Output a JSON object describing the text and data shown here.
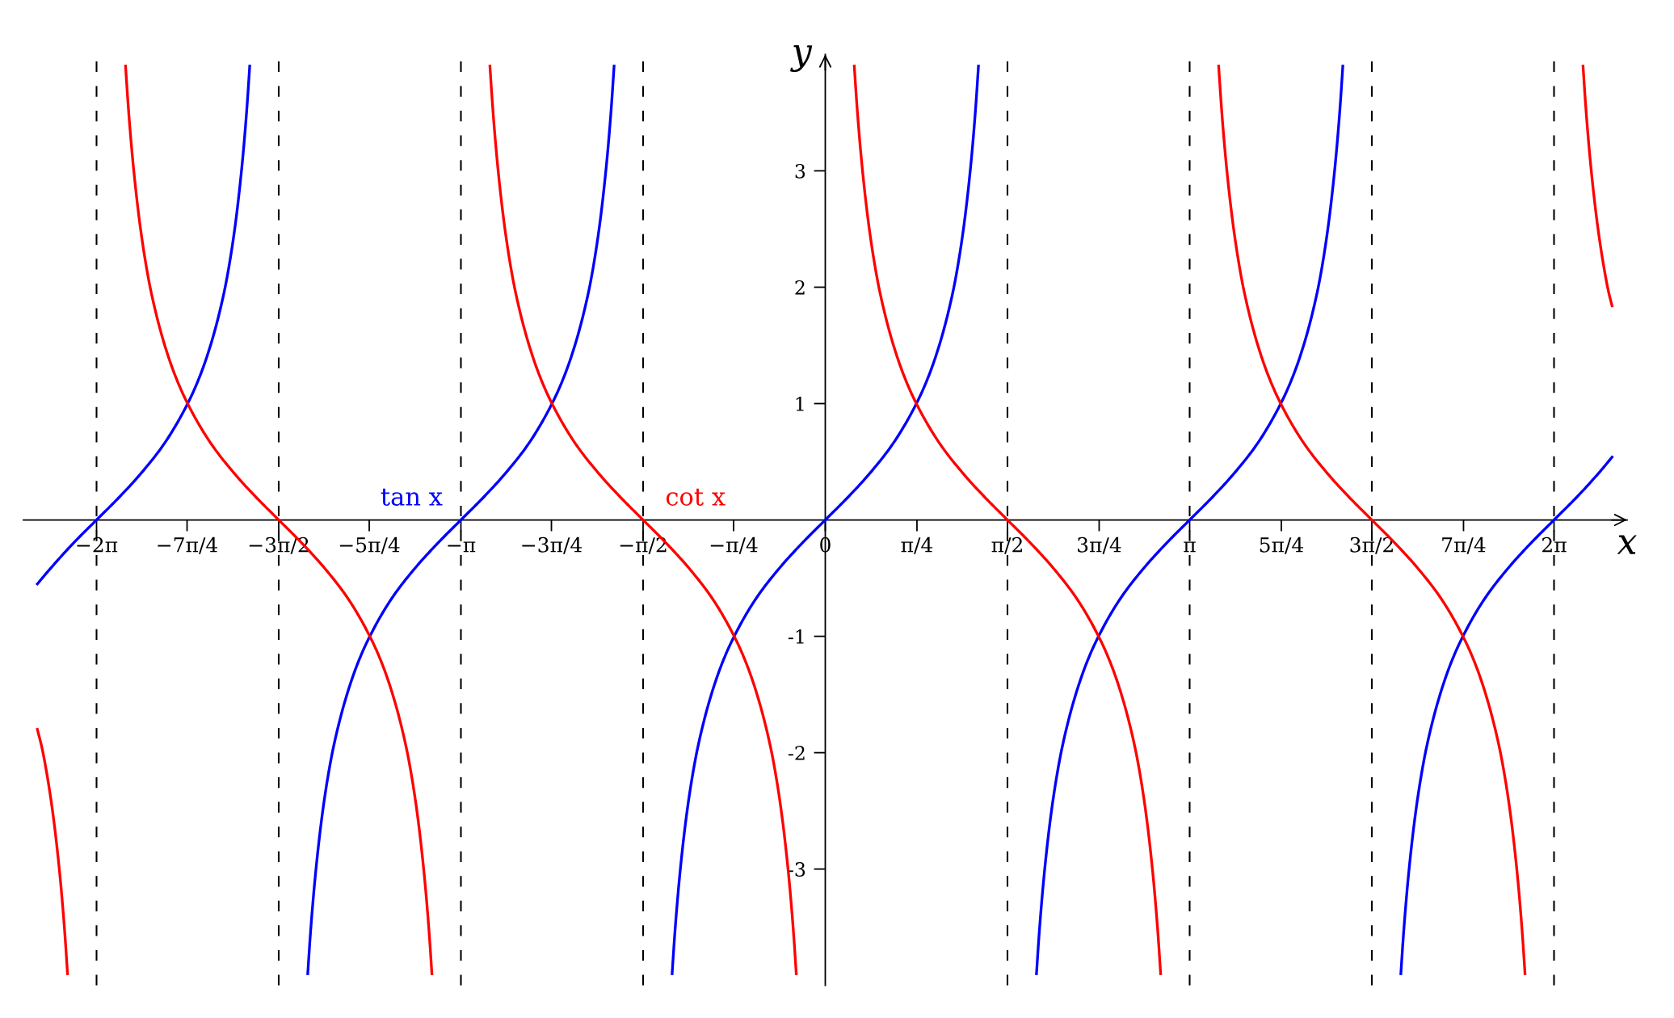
{
  "chart_data": {
    "type": "line",
    "xlabel": "x",
    "ylabel": "y",
    "xlim": [
      -6.91,
      6.91
    ],
    "ylim": [
      -4,
      4
    ],
    "xticks": [
      {
        "value": -6.28,
        "label": "−2π"
      },
      {
        "value": -5.5,
        "label": "−7π/4"
      },
      {
        "value": -4.71,
        "label": "−3π/2"
      },
      {
        "value": -3.93,
        "label": "−5π/4"
      },
      {
        "value": -3.14,
        "label": "−π"
      },
      {
        "value": -2.36,
        "label": "−3π/4"
      },
      {
        "value": -1.57,
        "label": "−π/2"
      },
      {
        "value": -0.79,
        "label": "−π/4"
      },
      0,
      {
        "value": 0.79,
        "label": "π/4"
      },
      {
        "value": 1.57,
        "label": "π/2"
      },
      {
        "value": 2.36,
        "label": "3π/4"
      },
      {
        "value": 3.14,
        "label": "π"
      },
      {
        "value": 3.93,
        "label": "5π/4"
      },
      {
        "value": 4.71,
        "label": "3π/2"
      },
      {
        "value": 5.5,
        "label": "7π/4"
      },
      {
        "value": 6.28,
        "label": "2π"
      }
    ],
    "yticks": [
      -3,
      -2,
      -1,
      1,
      2,
      3
    ],
    "line_style": "solid",
    "series": [
      {
        "name": "tan x",
        "color": "#0000ff",
        "x": [
          -6.79,
          -6.68,
          -6.48,
          -6.28,
          -6.08,
          -5.88,
          -5.68,
          -5.48,
          -5.38,
          -5.28,
          -5.18,
          -5.13,
          -5.08,
          -5.03,
          -5.0,
          -4.98,
          -4.96,
          -4.71,
          -4.46,
          -4.44,
          -4.42,
          -4.39,
          -4.34,
          -4.29,
          -4.24,
          -4.14,
          -4.04,
          -3.94,
          -3.74,
          -3.54,
          -3.34,
          -3.14,
          -2.94,
          -2.74,
          -2.54,
          -2.34,
          -2.24,
          -2.14,
          -2.04,
          -1.99,
          -1.94,
          -1.89,
          -1.86,
          -1.84,
          -1.82,
          -1.57,
          -1.32,
          -1.3,
          -1.28,
          -1.25,
          -1.2,
          -1.15,
          -1.1,
          -1.0,
          -0.9,
          -0.8,
          -0.6,
          -0.4,
          -0.2,
          0,
          0.2,
          0.4,
          0.6,
          0.8,
          0.9,
          1.0,
          1.1,
          1.15,
          1.2,
          1.25,
          1.28,
          1.3,
          1.32,
          1.57,
          1.82,
          1.84,
          1.86,
          1.89,
          1.94,
          1.99,
          2.04,
          2.14,
          2.24,
          2.34,
          2.54,
          2.74,
          2.94,
          3.14,
          3.34,
          3.54,
          3.74,
          3.94,
          4.04,
          4.14,
          4.24,
          4.29,
          4.34,
          4.39,
          4.42,
          4.44,
          4.46,
          4.71,
          4.96,
          4.98,
          5.0,
          5.03,
          5.08,
          5.13,
          5.18,
          5.28,
          5.38,
          5.48,
          5.68,
          5.88,
          6.08,
          6.28,
          6.48,
          6.68,
          6.78
        ],
        "values": [
          -0.55,
          -0.42,
          -0.2,
          0,
          0.2,
          0.42,
          0.68,
          1.03,
          1.26,
          1.56,
          1.96,
          2.23,
          2.57,
          3.01,
          3.34,
          3.6,
          3.9,
          null,
          -3.9,
          -3.6,
          -3.34,
          -3.01,
          -2.57,
          -2.23,
          -1.96,
          -1.56,
          -1.26,
          -1.03,
          -0.68,
          -0.42,
          -0.2,
          0,
          0.2,
          0.42,
          0.68,
          1.03,
          1.26,
          1.56,
          1.96,
          2.23,
          2.57,
          3.01,
          3.34,
          3.6,
          3.9,
          null,
          -3.9,
          -3.6,
          -3.34,
          -3.01,
          -2.57,
          -2.23,
          -1.96,
          -1.56,
          -1.26,
          -1.03,
          -0.68,
          -0.42,
          -0.2,
          0,
          0.2,
          0.42,
          0.68,
          1.03,
          1.26,
          1.56,
          1.96,
          2.23,
          2.57,
          3.01,
          3.34,
          3.6,
          3.9,
          null,
          -3.9,
          -3.6,
          -3.34,
          -3.01,
          -2.57,
          -2.23,
          -1.96,
          -1.56,
          -1.26,
          -1.03,
          -0.68,
          -0.42,
          -0.2,
          0,
          0.2,
          0.42,
          0.68,
          1.03,
          1.26,
          1.56,
          1.96,
          2.23,
          2.57,
          3.01,
          3.34,
          3.6,
          3.9,
          null,
          -3.9,
          -3.6,
          -3.34,
          -3.01,
          -2.57,
          -2.23,
          -1.96,
          -1.56,
          -1.26,
          -1.03,
          -0.68,
          -0.42,
          -0.2,
          0,
          0.2,
          0.42,
          0.54
        ]
      },
      {
        "name": "cot x",
        "color": "#ff0000",
        "x": [
          -6.79,
          -6.75,
          -6.7,
          -6.65,
          -6.6,
          -6.57,
          -6.55,
          -6.53,
          -6.28,
          -6.03,
          -6.01,
          -5.99,
          -5.96,
          -5.91,
          -5.86,
          -5.81,
          -5.71,
          -5.61,
          -5.51,
          -5.31,
          -5.11,
          -4.91,
          -4.71,
          -4.51,
          -4.31,
          -4.11,
          -3.91,
          -3.81,
          -3.71,
          -3.61,
          -3.56,
          -3.51,
          -3.46,
          -3.43,
          -3.41,
          -3.39,
          -3.14,
          -2.89,
          -2.87,
          -2.85,
          -2.82,
          -2.77,
          -2.72,
          -2.67,
          -2.57,
          -2.47,
          -2.37,
          -2.17,
          -1.97,
          -1.77,
          -1.57,
          -1.37,
          -1.17,
          -0.97,
          -0.77,
          -0.67,
          -0.57,
          -0.47,
          -0.42,
          -0.37,
          -0.32,
          -0.29,
          -0.27,
          -0.25,
          0,
          0.25,
          0.27,
          0.29,
          0.32,
          0.37,
          0.42,
          0.47,
          0.57,
          0.67,
          0.77,
          0.97,
          1.17,
          1.37,
          1.57,
          1.77,
          1.97,
          2.17,
          2.37,
          2.47,
          2.57,
          2.67,
          2.72,
          2.77,
          2.82,
          2.85,
          2.87,
          2.89,
          3.14,
          3.39,
          3.41,
          3.43,
          3.46,
          3.51,
          3.56,
          3.61,
          3.71,
          3.81,
          3.91,
          4.11,
          4.31,
          4.51,
          4.71,
          4.91,
          5.11,
          5.31,
          5.51,
          5.61,
          5.71,
          5.81,
          5.86,
          5.91,
          5.96,
          5.99,
          6.01,
          6.03,
          6.28,
          6.53,
          6.55,
          6.57,
          6.6,
          6.65,
          6.7,
          6.75,
          6.78
        ],
        "values": [
          -1.8,
          -1.96,
          -2.23,
          -2.57,
          -3.01,
          -3.34,
          -3.6,
          -3.9,
          null,
          3.9,
          3.6,
          3.34,
          3.01,
          2.57,
          2.23,
          1.96,
          1.56,
          1.26,
          1.03,
          0.68,
          0.42,
          0.2,
          0,
          -0.2,
          -0.42,
          -0.68,
          -1.03,
          -1.26,
          -1.56,
          -1.96,
          -2.23,
          -2.57,
          -3.01,
          -3.34,
          -3.6,
          -3.9,
          null,
          3.9,
          3.6,
          3.34,
          3.01,
          2.57,
          2.23,
          1.96,
          1.56,
          1.26,
          1.03,
          0.68,
          0.42,
          0.2,
          0,
          -0.2,
          -0.42,
          -0.68,
          -1.03,
          -1.26,
          -1.56,
          -1.96,
          -2.23,
          -2.57,
          -3.01,
          -3.34,
          -3.6,
          -3.9,
          null,
          3.9,
          3.6,
          3.34,
          3.01,
          2.57,
          2.23,
          1.96,
          1.56,
          1.26,
          1.03,
          0.68,
          0.42,
          0.2,
          0,
          -0.2,
          -0.42,
          -0.68,
          -1.03,
          -1.26,
          -1.56,
          -1.96,
          -2.23,
          -2.57,
          -3.01,
          -3.34,
          -3.6,
          -3.9,
          null,
          3.9,
          3.6,
          3.34,
          3.01,
          2.57,
          2.23,
          1.96,
          1.56,
          1.26,
          1.03,
          0.68,
          0.42,
          0.2,
          0,
          -0.2,
          -0.42,
          -0.68,
          -1.03,
          -1.26,
          -1.56,
          -1.96,
          -2.23,
          -2.57,
          -3.01,
          -3.34,
          -3.6,
          -3.9,
          null,
          3.9,
          3.6,
          3.34,
          3.01,
          2.57,
          2.23,
          1.96,
          1.84
        ]
      }
    ],
    "ref_lines": [
      {
        "axis": "x",
        "value": -6.28,
        "color": "#000000",
        "line_style": "dashed"
      },
      {
        "axis": "x",
        "value": -4.71,
        "color": "#000000",
        "line_style": "dashed"
      },
      {
        "axis": "x",
        "value": -3.14,
        "color": "#000000",
        "line_style": "dashed"
      },
      {
        "axis": "x",
        "value": -1.57,
        "color": "#000000",
        "line_style": "dashed"
      },
      {
        "axis": "x",
        "value": 1.57,
        "color": "#000000",
        "line_style": "dashed"
      },
      {
        "axis": "x",
        "value": 3.14,
        "color": "#000000",
        "line_style": "dashed"
      },
      {
        "axis": "x",
        "value": 4.71,
        "color": "#000000",
        "line_style": "dashed"
      },
      {
        "axis": "x",
        "value": 6.28,
        "color": "#000000",
        "line_style": "dashed"
      }
    ]
  }
}
